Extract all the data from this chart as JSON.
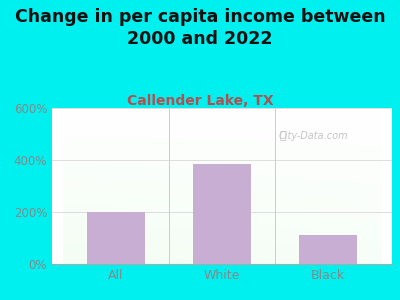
{
  "title": "Change in per capita income between\n2000 and 2022",
  "subtitle": "Callender Lake, TX",
  "categories": [
    "All",
    "White",
    "Black"
  ],
  "values": [
    200,
    385,
    110
  ],
  "bar_color": "#c9aed3",
  "title_fontsize": 12.5,
  "subtitle_fontsize": 10,
  "subtitle_color": "#b05050",
  "title_color": "#111111",
  "bg_color": "#00f0f0",
  "ylim": [
    0,
    600
  ],
  "yticks": [
    0,
    200,
    400,
    600
  ],
  "ytick_labels": [
    "0%",
    "200%",
    "400%",
    "600%"
  ],
  "tick_color": "#888888",
  "watermark": "City-Data.com",
  "watermark_color": "#bbbbbb",
  "grid_color": "#dddddd",
  "divider_color": "#cccccc"
}
